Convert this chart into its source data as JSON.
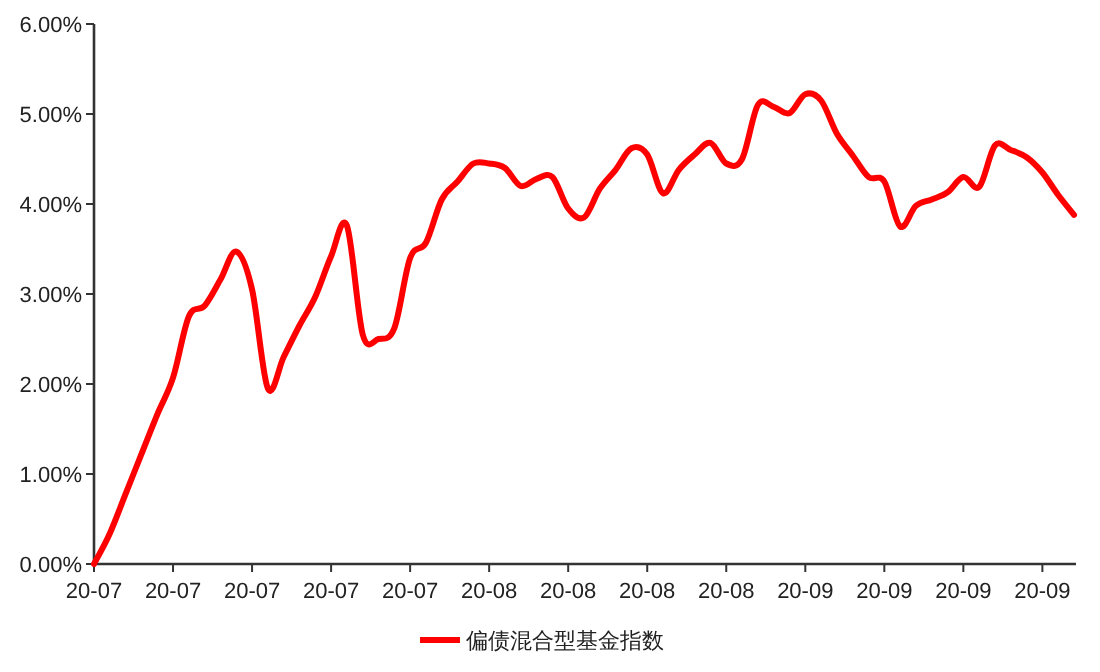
{
  "chart_data": {
    "type": "line",
    "legend": "bottom",
    "line_style": "solid",
    "marker": "none",
    "categories": [
      "20-07",
      null,
      null,
      null,
      null,
      "20-07",
      null,
      null,
      null,
      null,
      "20-07",
      null,
      null,
      null,
      null,
      "20-07",
      null,
      null,
      null,
      null,
      "20-07",
      null,
      null,
      null,
      null,
      "20-08",
      null,
      null,
      null,
      null,
      "20-08",
      null,
      null,
      null,
      null,
      "20-08",
      null,
      null,
      null,
      null,
      "20-08",
      null,
      null,
      null,
      null,
      "20-09",
      null,
      null,
      null,
      null,
      "20-09",
      null,
      null,
      null,
      null,
      "20-09",
      null,
      null,
      null,
      null,
      "20-09",
      null,
      null
    ],
    "series": [
      {
        "name": "偏债混合型基金指数",
        "color": "#ff0000",
        "values": [
          0,
          0.34,
          0.78,
          1.22,
          1.66,
          2.07,
          2.75,
          2.87,
          3.16,
          3.47,
          3.05,
          1.95,
          2.3,
          2.65,
          2.97,
          3.42,
          3.76,
          2.55,
          2.5,
          2.62,
          3.4,
          3.57,
          4.05,
          4.25,
          4.45,
          4.45,
          4.4,
          4.2,
          4.28,
          4.3,
          3.95,
          3.85,
          4.17,
          4.38,
          4.62,
          4.55,
          4.12,
          4.38,
          4.55,
          4.68,
          4.45,
          4.5,
          5.1,
          5.08,
          5.01,
          5.22,
          5.15,
          4.78,
          4.54,
          4.3,
          4.25,
          3.75,
          3.98,
          4.05,
          4.13,
          4.3,
          4.19,
          4.65,
          4.6,
          4.52,
          4.35,
          4.1,
          3.88
        ]
      }
    ],
    "ylim": [
      0,
      6
    ],
    "yticks": [
      {
        "value": 0,
        "label": "0.00%"
      },
      {
        "value": 1,
        "label": "1.00%"
      },
      {
        "value": 2,
        "label": "2.00%"
      },
      {
        "value": 3,
        "label": "3.00%"
      },
      {
        "value": 4,
        "label": "4.00%"
      },
      {
        "value": 5,
        "label": "5.00%"
      },
      {
        "value": 6,
        "label": "6.00%"
      }
    ]
  }
}
